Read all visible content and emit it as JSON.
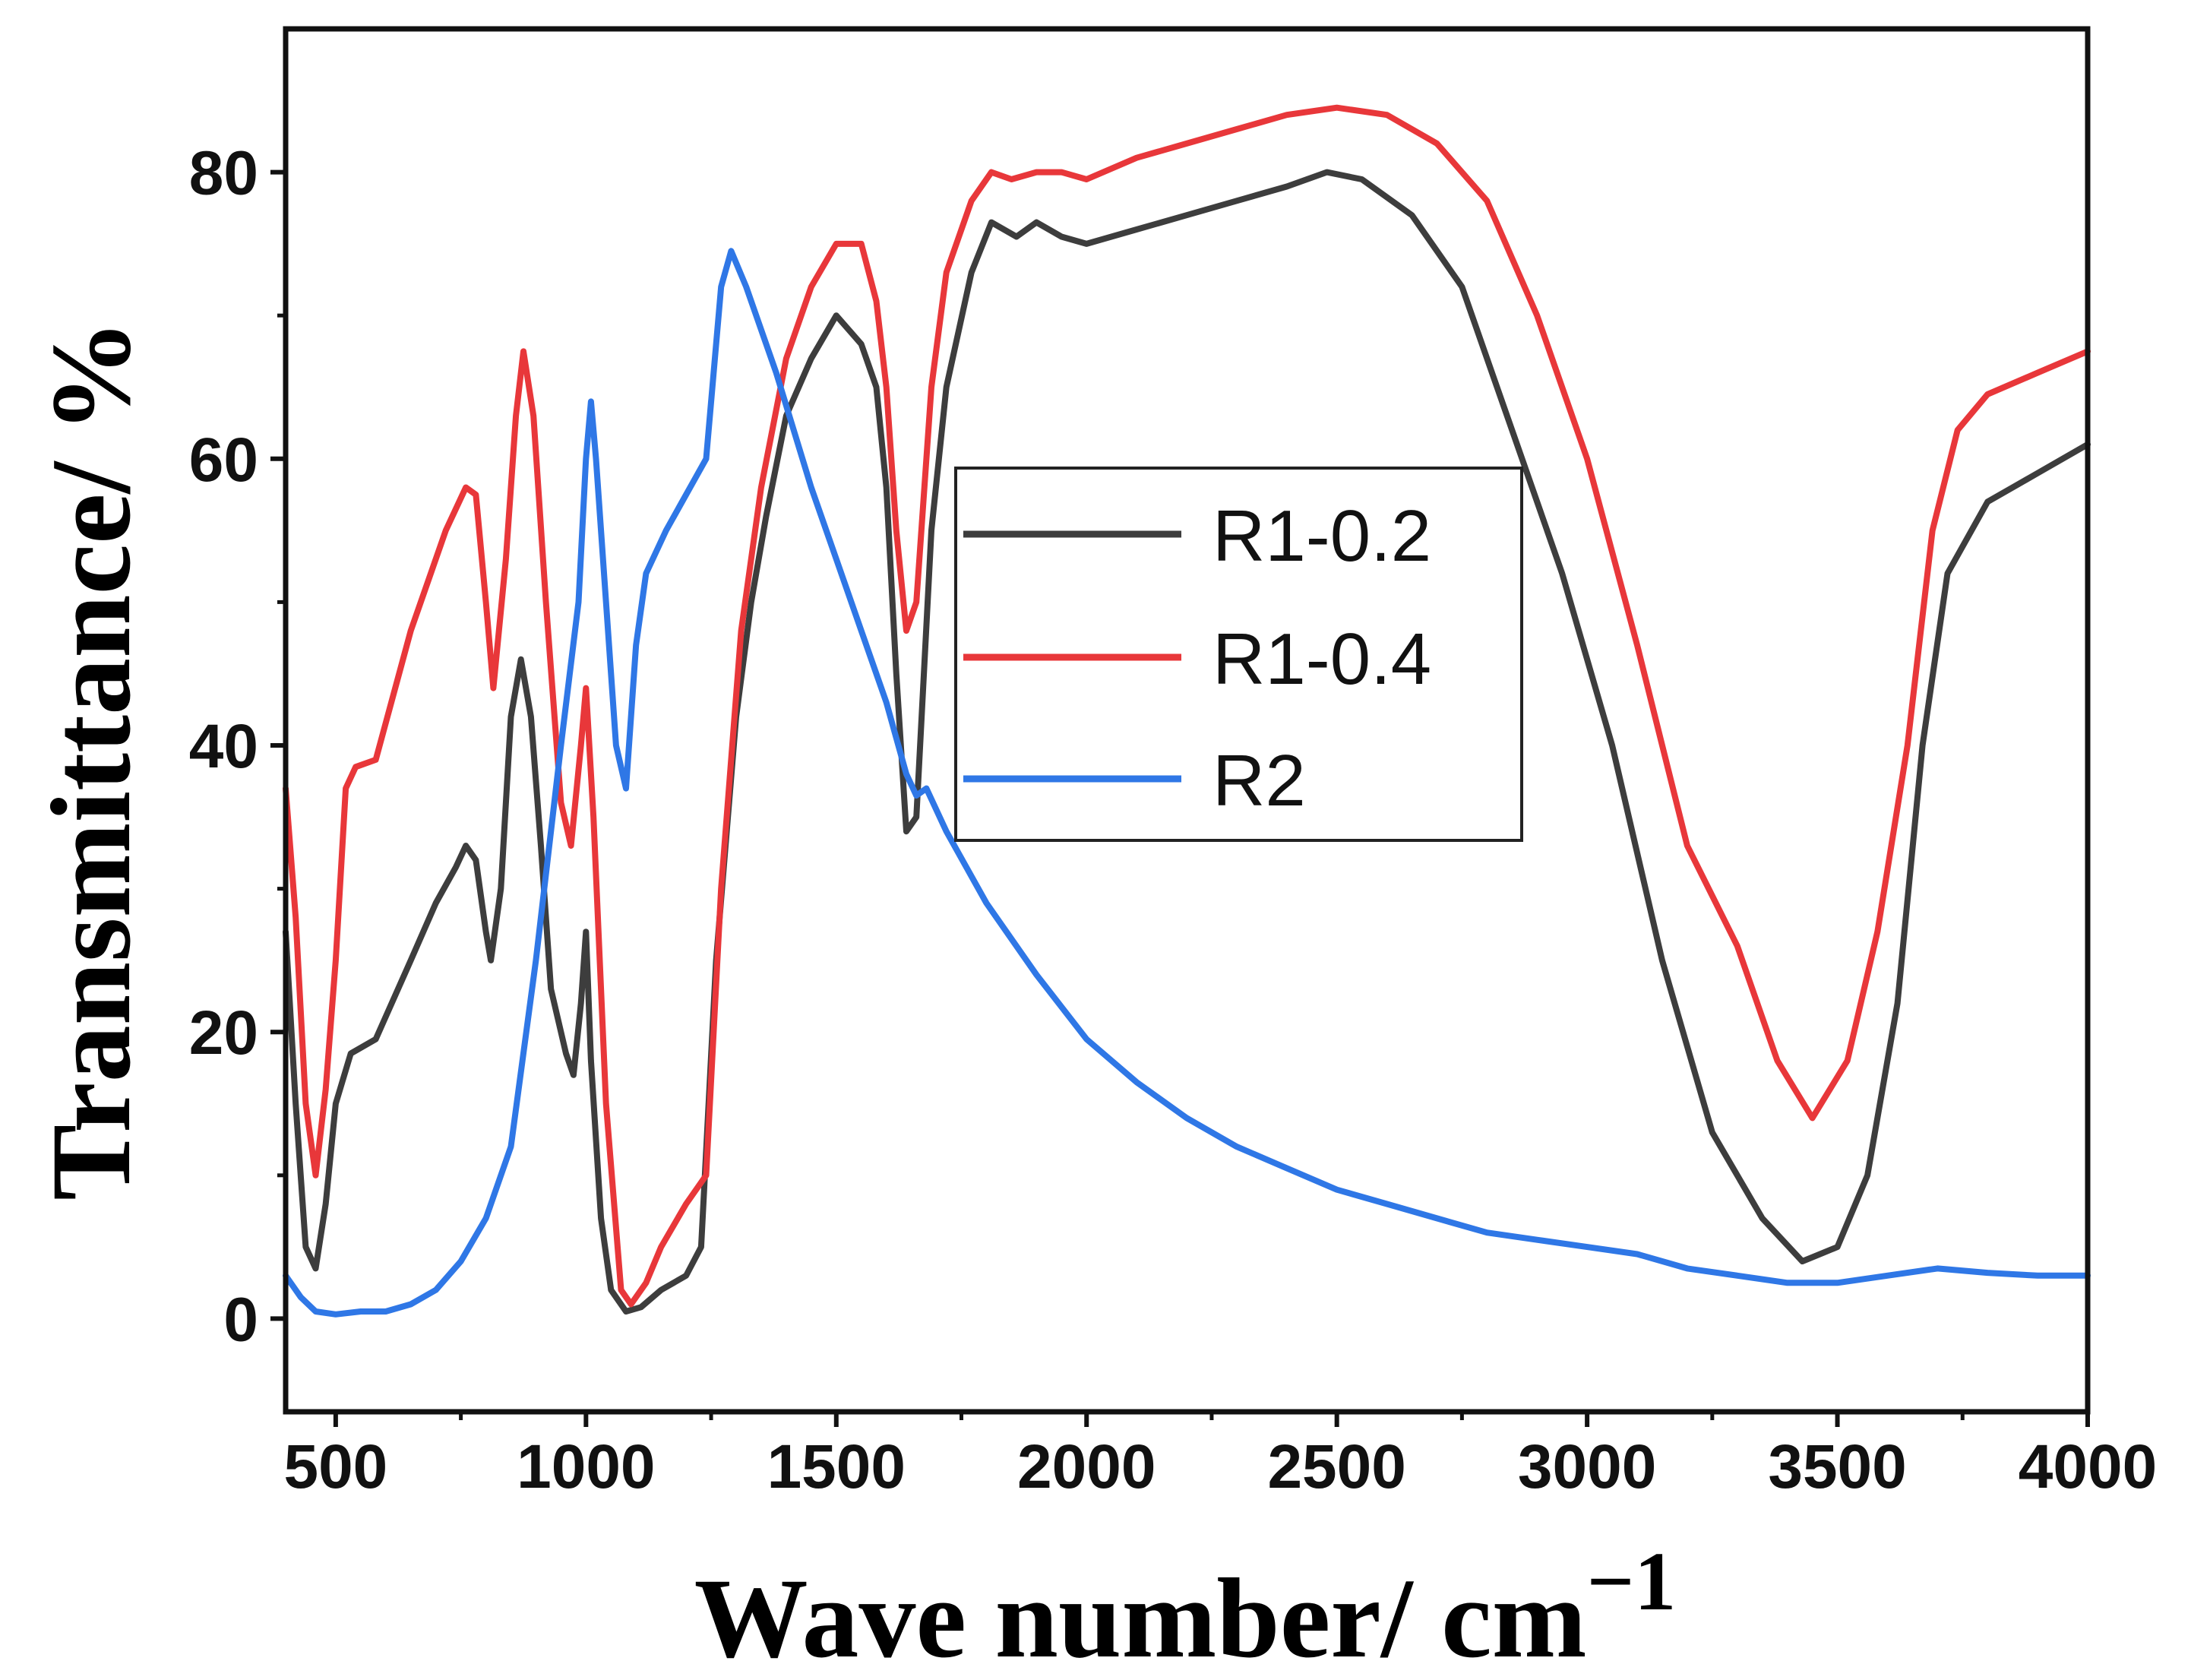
{
  "chart_data": {
    "type": "line",
    "xlabel": "Wave number/ cm",
    "xlabel_sup": "−1",
    "ylabel": "Transmittance/ %",
    "xlim": [
      400,
      4000
    ],
    "ylim": [
      -6.5,
      90
    ],
    "xticks": [
      500,
      1000,
      1500,
      2000,
      2500,
      3000,
      3500,
      4000
    ],
    "yticks": [
      0,
      20,
      40,
      60,
      80
    ],
    "legend_position": "center",
    "series": [
      {
        "name": "R1-0.2",
        "color": "#3d3d3d",
        "points": [
          [
            400,
            27
          ],
          [
            420,
            15
          ],
          [
            440,
            5
          ],
          [
            460,
            3.5
          ],
          [
            480,
            8
          ],
          [
            500,
            15
          ],
          [
            530,
            18.5
          ],
          [
            580,
            19.5
          ],
          [
            650,
            25
          ],
          [
            700,
            29
          ],
          [
            740,
            31.5
          ],
          [
            760,
            33
          ],
          [
            780,
            32
          ],
          [
            800,
            27
          ],
          [
            810,
            25
          ],
          [
            830,
            30
          ],
          [
            850,
            42
          ],
          [
            870,
            46
          ],
          [
            890,
            42
          ],
          [
            910,
            33
          ],
          [
            930,
            23
          ],
          [
            960,
            18.5
          ],
          [
            975,
            17
          ],
          [
            990,
            22
          ],
          [
            1000,
            27
          ],
          [
            1010,
            18
          ],
          [
            1030,
            7
          ],
          [
            1050,
            2
          ],
          [
            1080,
            0.5
          ],
          [
            1110,
            0.8
          ],
          [
            1150,
            2
          ],
          [
            1200,
            3
          ],
          [
            1230,
            5
          ],
          [
            1260,
            25
          ],
          [
            1300,
            42
          ],
          [
            1330,
            50
          ],
          [
            1360,
            56
          ],
          [
            1400,
            63
          ],
          [
            1450,
            67
          ],
          [
            1500,
            70
          ],
          [
            1550,
            68
          ],
          [
            1580,
            65
          ],
          [
            1600,
            58
          ],
          [
            1620,
            45
          ],
          [
            1640,
            34
          ],
          [
            1660,
            35
          ],
          [
            1690,
            55
          ],
          [
            1720,
            65
          ],
          [
            1770,
            73
          ],
          [
            1810,
            76.5
          ],
          [
            1860,
            75.5
          ],
          [
            1900,
            76.5
          ],
          [
            1950,
            75.5
          ],
          [
            2000,
            75
          ],
          [
            2100,
            76
          ],
          [
            2200,
            77
          ],
          [
            2300,
            78
          ],
          [
            2400,
            79
          ],
          [
            2480,
            80
          ],
          [
            2550,
            79.5
          ],
          [
            2650,
            77
          ],
          [
            2750,
            72
          ],
          [
            2850,
            62
          ],
          [
            2950,
            52
          ],
          [
            3050,
            40
          ],
          [
            3150,
            25
          ],
          [
            3250,
            13
          ],
          [
            3350,
            7
          ],
          [
            3430,
            4
          ],
          [
            3500,
            5
          ],
          [
            3560,
            10
          ],
          [
            3620,
            22
          ],
          [
            3670,
            40
          ],
          [
            3720,
            52
          ],
          [
            3800,
            57
          ],
          [
            3900,
            59
          ],
          [
            4000,
            61
          ]
        ]
      },
      {
        "name": "R1-0.4",
        "color": "#e8373a",
        "points": [
          [
            400,
            37
          ],
          [
            420,
            28
          ],
          [
            440,
            15
          ],
          [
            460,
            10
          ],
          [
            480,
            16
          ],
          [
            500,
            25
          ],
          [
            520,
            37
          ],
          [
            540,
            38.5
          ],
          [
            580,
            39
          ],
          [
            650,
            48
          ],
          [
            720,
            55
          ],
          [
            760,
            58
          ],
          [
            780,
            57.5
          ],
          [
            800,
            50
          ],
          [
            815,
            44
          ],
          [
            840,
            53
          ],
          [
            860,
            63
          ],
          [
            875,
            67.5
          ],
          [
            895,
            63
          ],
          [
            920,
            50
          ],
          [
            950,
            36
          ],
          [
            970,
            33
          ],
          [
            990,
            40
          ],
          [
            1000,
            44
          ],
          [
            1015,
            35
          ],
          [
            1040,
            15
          ],
          [
            1070,
            2
          ],
          [
            1090,
            1
          ],
          [
            1120,
            2.5
          ],
          [
            1150,
            5
          ],
          [
            1200,
            8
          ],
          [
            1240,
            10
          ],
          [
            1270,
            30
          ],
          [
            1310,
            48
          ],
          [
            1350,
            58
          ],
          [
            1400,
            67
          ],
          [
            1450,
            72
          ],
          [
            1500,
            75
          ],
          [
            1550,
            75
          ],
          [
            1580,
            71
          ],
          [
            1600,
            65
          ],
          [
            1620,
            55
          ],
          [
            1640,
            48
          ],
          [
            1660,
            50
          ],
          [
            1690,
            65
          ],
          [
            1720,
            73
          ],
          [
            1770,
            78
          ],
          [
            1810,
            80
          ],
          [
            1850,
            79.5
          ],
          [
            1900,
            80
          ],
          [
            1950,
            80
          ],
          [
            2000,
            79.5
          ],
          [
            2100,
            81
          ],
          [
            2200,
            82
          ],
          [
            2300,
            83
          ],
          [
            2400,
            84
          ],
          [
            2500,
            84.5
          ],
          [
            2600,
            84
          ],
          [
            2700,
            82
          ],
          [
            2800,
            78
          ],
          [
            2900,
            70
          ],
          [
            3000,
            60
          ],
          [
            3100,
            47
          ],
          [
            3200,
            33
          ],
          [
            3300,
            26
          ],
          [
            3380,
            18
          ],
          [
            3450,
            14
          ],
          [
            3520,
            18
          ],
          [
            3580,
            27
          ],
          [
            3640,
            40
          ],
          [
            3690,
            55
          ],
          [
            3740,
            62
          ],
          [
            3800,
            64.5
          ],
          [
            3900,
            66
          ],
          [
            4000,
            67.5
          ]
        ]
      },
      {
        "name": "R2",
        "color": "#2f77e6",
        "points": [
          [
            400,
            3
          ],
          [
            430,
            1.5
          ],
          [
            460,
            0.5
          ],
          [
            500,
            0.3
          ],
          [
            550,
            0.5
          ],
          [
            600,
            0.5
          ],
          [
            650,
            1
          ],
          [
            700,
            2
          ],
          [
            750,
            4
          ],
          [
            800,
            7
          ],
          [
            850,
            12
          ],
          [
            900,
            25
          ],
          [
            950,
            40
          ],
          [
            985,
            50
          ],
          [
            1000,
            60
          ],
          [
            1010,
            64
          ],
          [
            1020,
            60
          ],
          [
            1040,
            50
          ],
          [
            1060,
            40
          ],
          [
            1080,
            37
          ],
          [
            1100,
            47
          ],
          [
            1120,
            52
          ],
          [
            1160,
            55
          ],
          [
            1200,
            57.5
          ],
          [
            1240,
            60
          ],
          [
            1270,
            72
          ],
          [
            1290,
            74.5
          ],
          [
            1320,
            72
          ],
          [
            1380,
            66
          ],
          [
            1450,
            58
          ],
          [
            1500,
            53
          ],
          [
            1550,
            48
          ],
          [
            1600,
            43
          ],
          [
            1640,
            38
          ],
          [
            1660,
            36.5
          ],
          [
            1680,
            37
          ],
          [
            1720,
            34
          ],
          [
            1800,
            29
          ],
          [
            1900,
            24
          ],
          [
            2000,
            19.5
          ],
          [
            2100,
            16.5
          ],
          [
            2200,
            14
          ],
          [
            2300,
            12
          ],
          [
            2400,
            10.5
          ],
          [
            2500,
            9
          ],
          [
            2600,
            8
          ],
          [
            2700,
            7
          ],
          [
            2800,
            6
          ],
          [
            2900,
            5.5
          ],
          [
            3000,
            5
          ],
          [
            3100,
            4.5
          ],
          [
            3200,
            3.5
          ],
          [
            3300,
            3
          ],
          [
            3400,
            2.5
          ],
          [
            3500,
            2.5
          ],
          [
            3600,
            3
          ],
          [
            3700,
            3.5
          ],
          [
            3800,
            3.2
          ],
          [
            3900,
            3
          ],
          [
            4000,
            3
          ]
        ]
      }
    ]
  }
}
